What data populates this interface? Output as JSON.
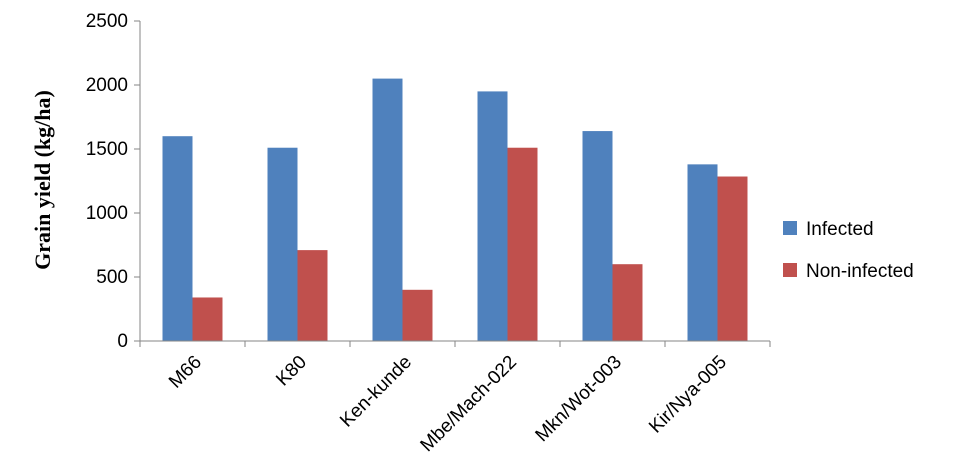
{
  "chart_data": {
    "type": "bar",
    "title": "",
    "xlabel": "",
    "ylabel": "Grain yield (kg/ha)",
    "ylim": [
      0,
      2500
    ],
    "yticks": [
      "0",
      "500",
      "1000",
      "1500",
      "2000",
      "2500"
    ],
    "grid": false,
    "legend_position": "right",
    "categories": [
      "M66",
      "K80",
      "Ken-kunde",
      "Mbe/Mach-022",
      "Mkn/Wot-003",
      "Kir/Nya-005"
    ],
    "series": [
      {
        "name": "Infected",
        "color": "#4F81BD",
        "values": [
          1600,
          1510,
          2050,
          1950,
          1640,
          1380
        ]
      },
      {
        "name": "Non-infected",
        "color": "#C0504D",
        "values": [
          340,
          710,
          400,
          1510,
          600,
          1285
        ]
      }
    ]
  }
}
